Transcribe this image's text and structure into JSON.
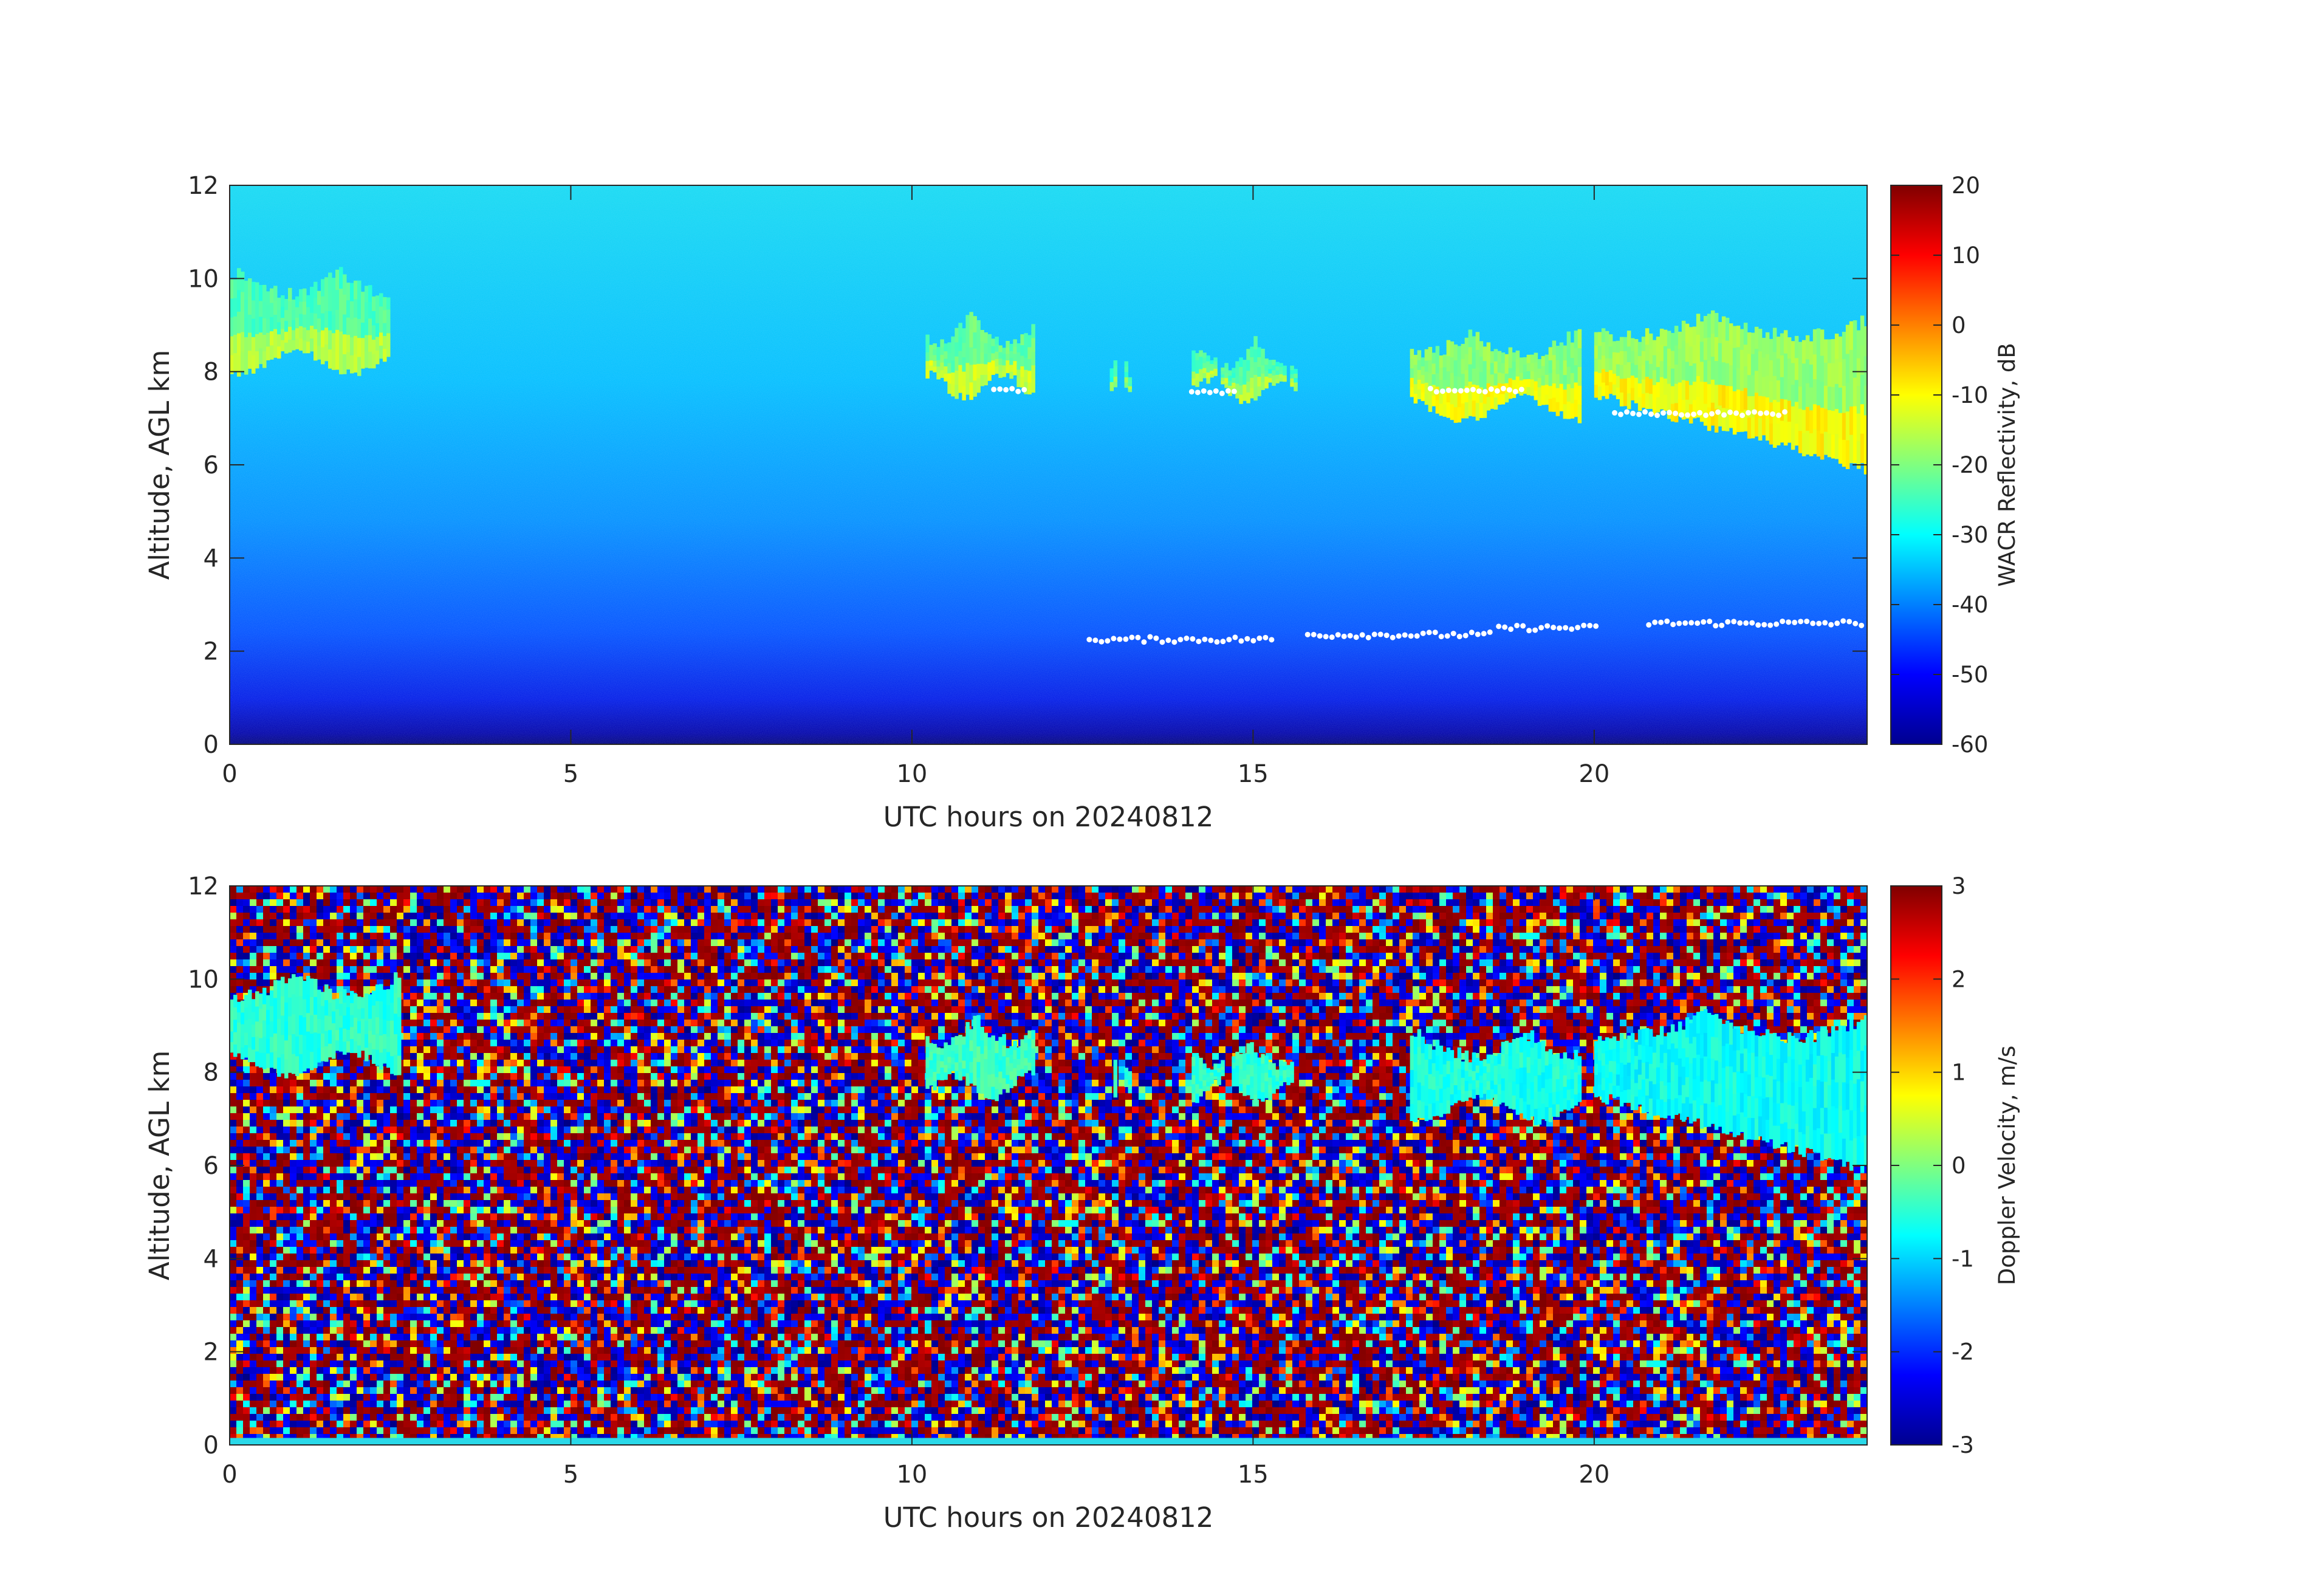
{
  "chart_data": [
    {
      "type": "heatmap",
      "xlabel": "UTC hours on 20240812",
      "ylabel": "Altitude, AGL km",
      "xlim": [
        0,
        24
      ],
      "ylim": [
        0,
        12
      ],
      "xticks": [
        "0",
        "5",
        "10",
        "15",
        "20"
      ],
      "yticks": [
        "0",
        "2",
        "4",
        "6",
        "8",
        "10",
        "12"
      ],
      "colorbar": {
        "label": "WACR Reflectivity, dB",
        "range": [
          -60,
          20
        ],
        "ticks": [
          "-60",
          "-50",
          "-40",
          "-30",
          "-20",
          "-10",
          "0",
          "10",
          "20"
        ],
        "colormap": "jet"
      },
      "background": "noise increasing from about -60 dB at the surface to about -35 dB at 12 km",
      "cloud_layers": [
        {
          "t_start": 0.0,
          "t_end": 2.3,
          "base_km": 8.2,
          "top_km": 10.3,
          "reflectivity_db": -20
        },
        {
          "t_start": 10.2,
          "t_end": 11.8,
          "base_km": 7.7,
          "top_km": 9.3,
          "reflectivity_db": -18
        },
        {
          "t_start": 12.9,
          "t_end": 13.2,
          "base_km": 7.8,
          "top_km": 8.5,
          "reflectivity_db": -22
        },
        {
          "t_start": 14.1,
          "t_end": 15.6,
          "base_km": 7.6,
          "top_km": 8.8,
          "reflectivity_db": -20
        },
        {
          "t_start": 17.3,
          "t_end": 19.8,
          "base_km": 7.2,
          "top_km": 9.0,
          "reflectivity_db": -15
        },
        {
          "t_start": 20.0,
          "t_end": 24.0,
          "base_km": 5.9,
          "top_km": 9.4,
          "reflectivity_db": -14
        }
      ],
      "white_markers": [
        {
          "t_start": 11.2,
          "t_end": 11.7,
          "altitude_km": 7.6
        },
        {
          "t_start": 14.1,
          "t_end": 14.8,
          "altitude_km": 7.55
        },
        {
          "t_start": 17.6,
          "t_end": 19.0,
          "altitude_km": 7.6
        },
        {
          "t_start": 20.3,
          "t_end": 22.8,
          "altitude_km": 7.1
        },
        {
          "t_start": 12.6,
          "t_end": 15.3,
          "altitude_km": 2.25
        },
        {
          "t_start": 15.8,
          "t_end": 18.5,
          "altitude_km": 2.35
        },
        {
          "t_start": 18.6,
          "t_end": 20.1,
          "altitude_km": 2.5
        },
        {
          "t_start": 20.8,
          "t_end": 24.0,
          "altitude_km": 2.6
        }
      ]
    },
    {
      "type": "heatmap",
      "xlabel": "UTC hours on 20240812",
      "ylabel": "Altitude, AGL km",
      "xlim": [
        0,
        24
      ],
      "ylim": [
        0,
        12
      ],
      "xticks": [
        "0",
        "5",
        "10",
        "15",
        "20"
      ],
      "yticks": [
        "0",
        "2",
        "4",
        "6",
        "8",
        "10",
        "12"
      ],
      "colorbar": {
        "label": "Doppler Velocity, m/s",
        "range": [
          -3,
          3
        ],
        "ticks": [
          "-3",
          "-2",
          "-1",
          "0",
          "1",
          "2",
          "3"
        ],
        "colormap": "jet"
      },
      "background": "random noise spanning -3 to 3 m/s",
      "cloud_layers": [
        {
          "t_start": 0.0,
          "t_end": 2.5,
          "base_km": 8.2,
          "top_km": 10.3,
          "velocity_ms": -0.5
        },
        {
          "t_start": 10.2,
          "t_end": 11.8,
          "base_km": 7.7,
          "top_km": 9.3,
          "velocity_ms": -0.4
        },
        {
          "t_start": 12.9,
          "t_end": 13.2,
          "base_km": 7.8,
          "top_km": 8.5,
          "velocity_ms": -0.5
        },
        {
          "t_start": 14.1,
          "t_end": 15.6,
          "base_km": 7.6,
          "top_km": 8.8,
          "velocity_ms": -0.5
        },
        {
          "t_start": 17.3,
          "t_end": 19.8,
          "base_km": 7.2,
          "top_km": 9.0,
          "velocity_ms": -0.6
        },
        {
          "t_start": 20.0,
          "t_end": 24.0,
          "base_km": 5.9,
          "top_km": 9.4,
          "velocity_ms": -0.7
        }
      ]
    }
  ]
}
